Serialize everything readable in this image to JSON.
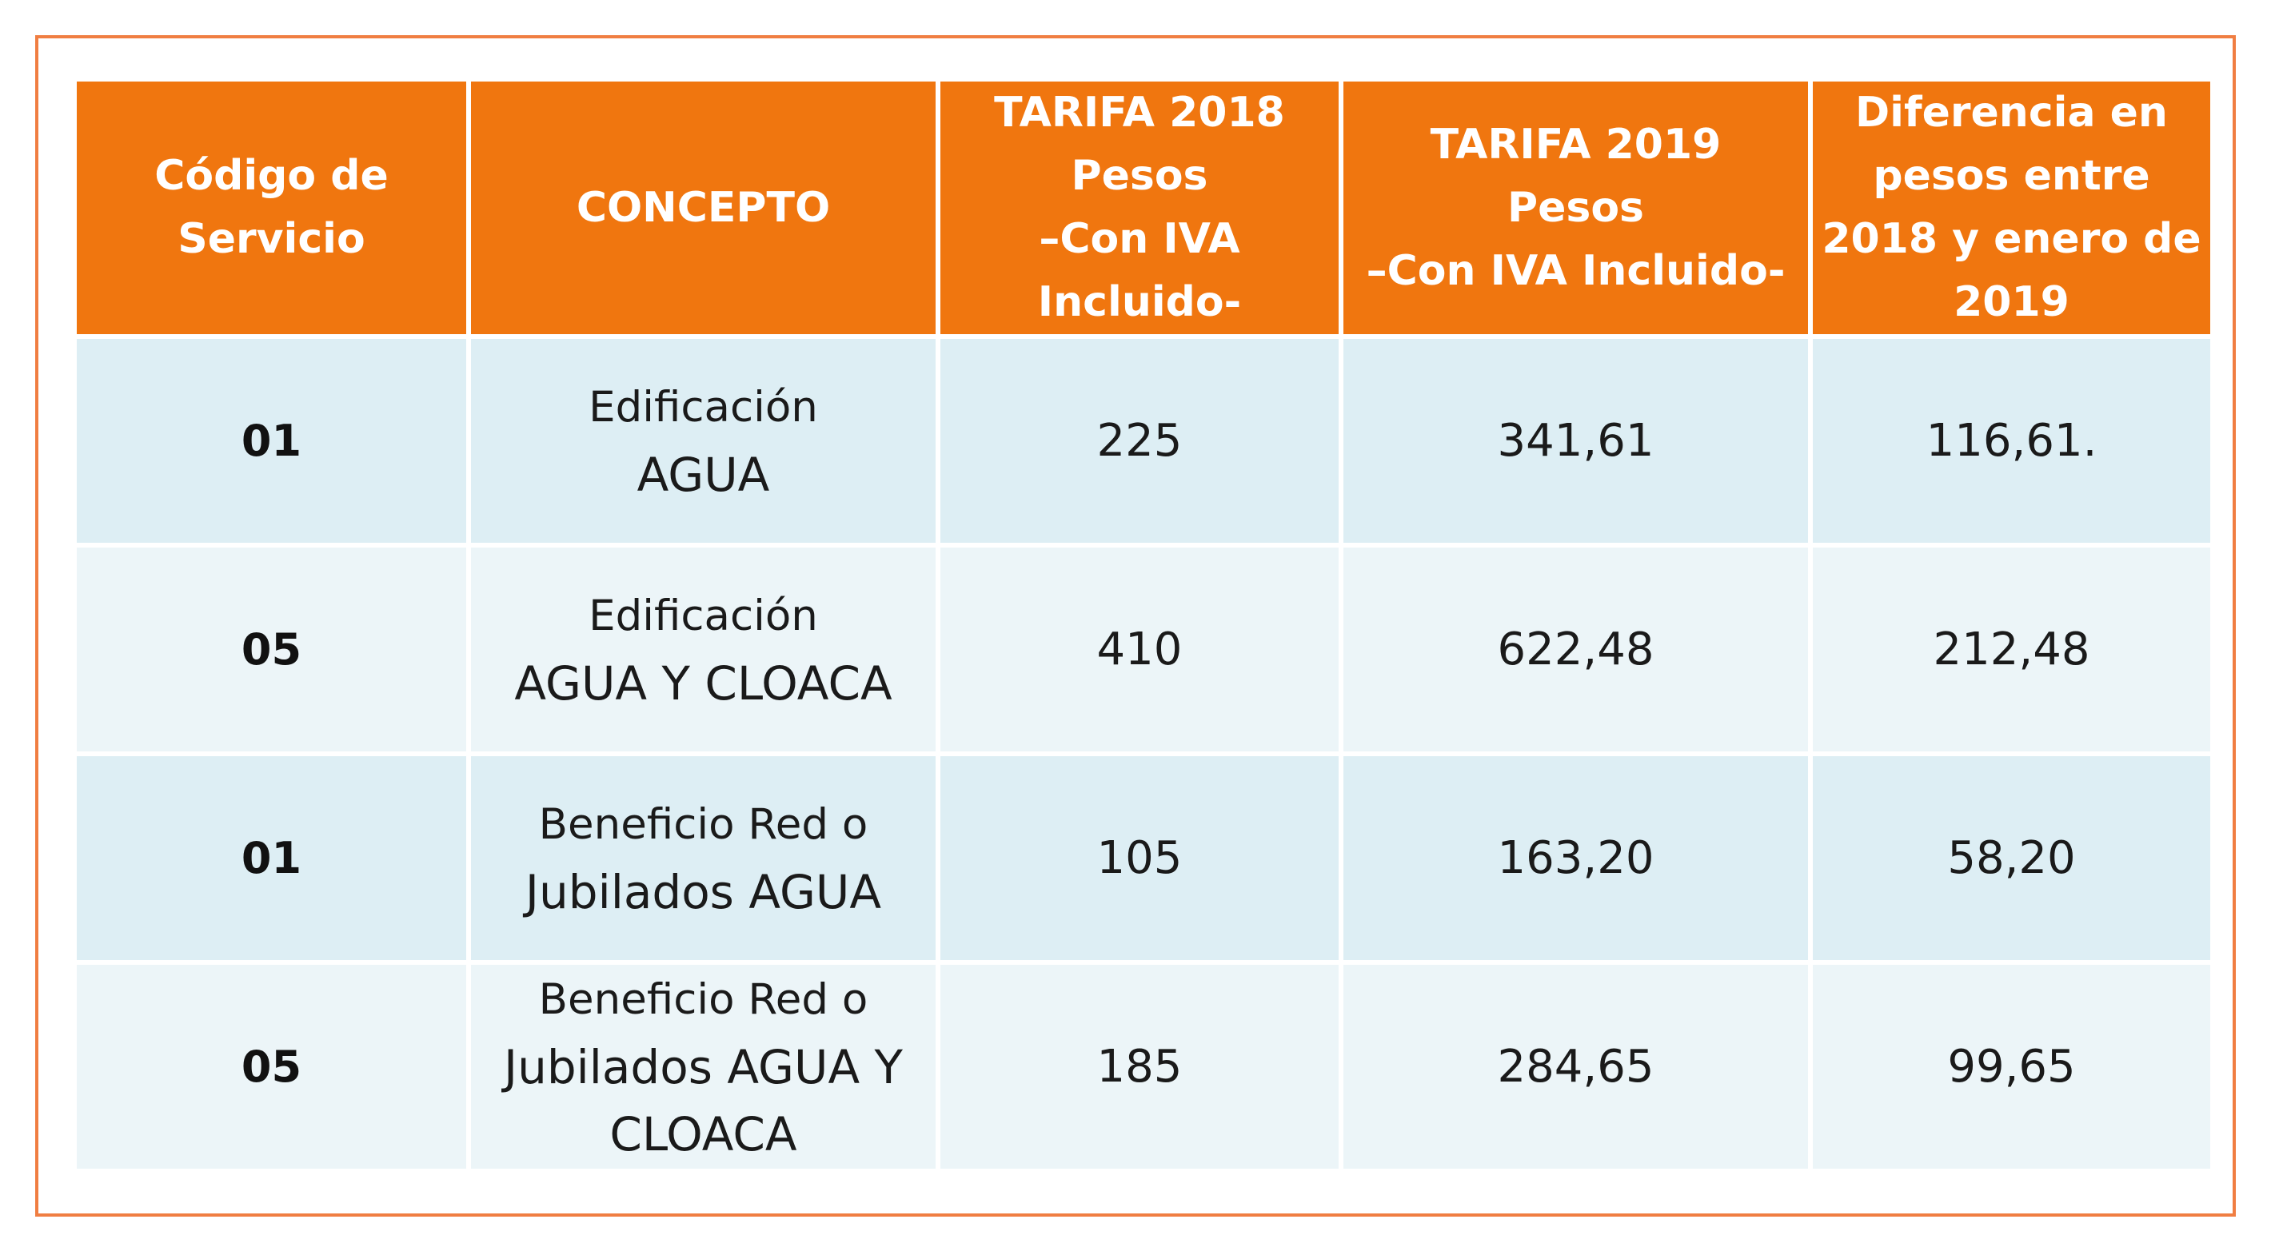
{
  "headers": [
    "Código de Servicio",
    "CONCEPTO",
    "TARIFA 2018 Pesos –Con IVA Incluido-",
    "TARIFA 2019 Pesos –Con IVA Incluido-",
    "Diferencia  en pesos entre 2018 y enero de 2019"
  ],
  "header_lines": [
    [
      "Código de",
      "Servicio"
    ],
    [
      "CONCEPTO"
    ],
    [
      "TARIFA 2018",
      "Pesos",
      "–Con IVA",
      "Incluido-"
    ],
    [
      "TARIFA 2019",
      "Pesos",
      "–Con IVA Incluido-"
    ],
    [
      "Diferencia  en",
      "pesos entre",
      "2018 y enero de",
      "2019"
    ]
  ],
  "rows": [
    {
      "code": "01",
      "concept_line1": "Edificación",
      "concept_line2": "AGUA",
      "tarifa_2018": "225",
      "tarifa_2019": "341,61",
      "diferencia": "116,61."
    },
    {
      "code": "05",
      "concept_line1": "Edificación",
      "concept_line2": "AGUA Y CLOACA",
      "tarifa_2018": "410",
      "tarifa_2019": "622,48",
      "diferencia": "212,48"
    },
    {
      "code": "01",
      "concept_line1": "Beneficio Red o",
      "concept_line2": "Jubilados AGUA",
      "tarifa_2018": "105",
      "tarifa_2019": "163,20",
      "diferencia": "58,20"
    },
    {
      "code": "05",
      "concept_line1": "Beneficio Red o",
      "concept_line2": "Jubilados  AGUA Y CLOACA",
      "tarifa_2018": "185",
      "tarifa_2019": "284,65",
      "diferencia": "99,65"
    }
  ],
  "colors": {
    "header_bg": "#f0760f",
    "header_text": "#ffffff",
    "row_odd_bg": "#ddeef4",
    "row_even_bg": "#ecf5f8",
    "frame_border": "#f07e42"
  }
}
